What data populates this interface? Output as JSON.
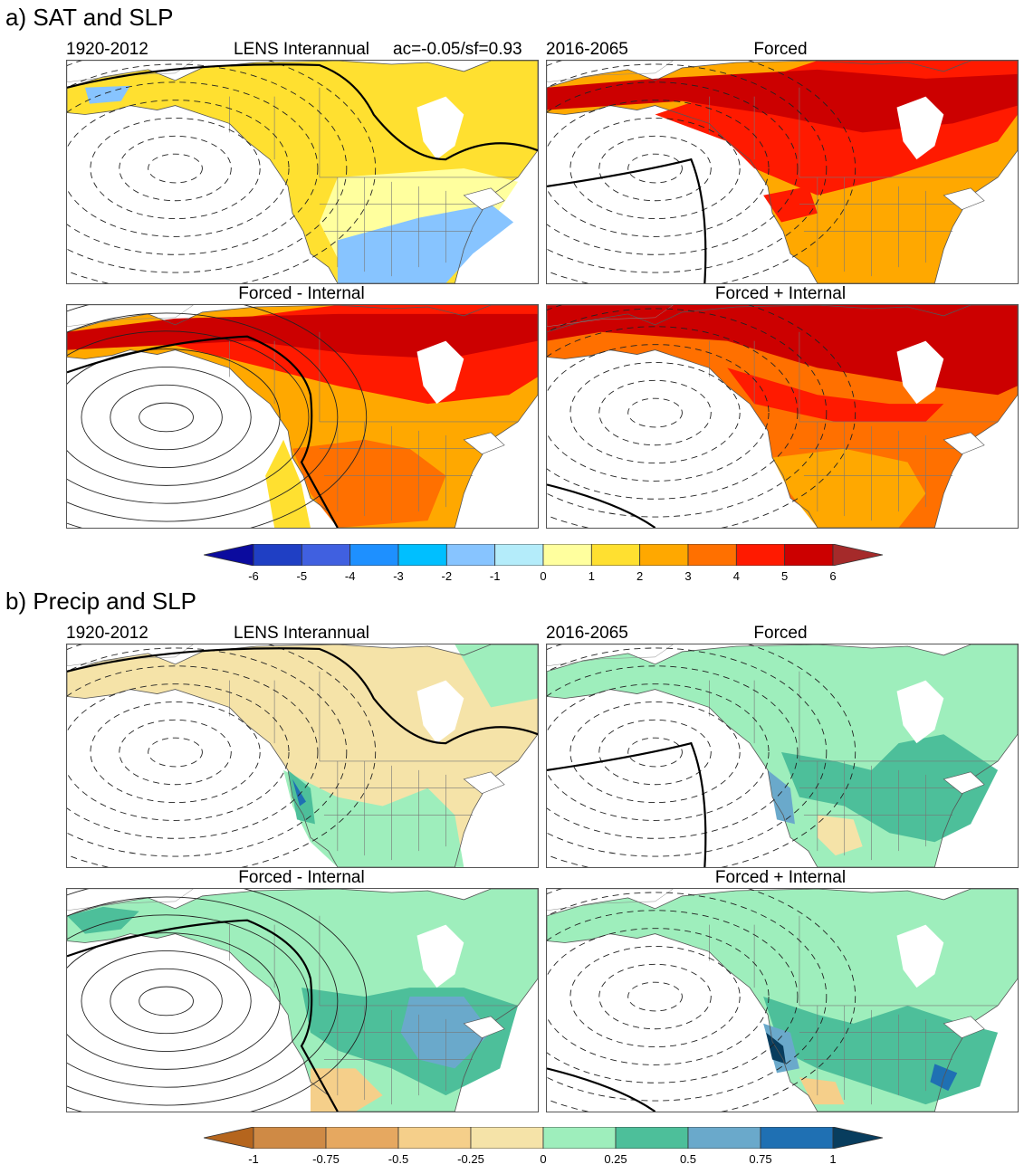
{
  "sections": [
    {
      "title": "a) SAT and SLP",
      "hdr_left": "1920-2012",
      "hdr_right": "2016-2065",
      "stat": "ac=-0.05/sf=0.93",
      "panels": [
        {
          "label": "LENS Interannual",
          "pattern": "sat_interannual"
        },
        {
          "label": "Forced",
          "pattern": "sat_forced"
        },
        {
          "label": "Forced - Internal",
          "pattern": "sat_minus"
        },
        {
          "label": "Forced + Internal",
          "pattern": "sat_plus"
        }
      ]
    },
    {
      "title": "b) Precip and SLP",
      "hdr_left": "1920-2012",
      "hdr_right": "2016-2065",
      "panels": [
        {
          "label": "LENS Interannual",
          "pattern": "pr_interannual"
        },
        {
          "label": "Forced",
          "pattern": "pr_forced"
        },
        {
          "label": "Forced - Internal",
          "pattern": "pr_minus"
        },
        {
          "label": "Forced + Internal",
          "pattern": "pr_plus"
        }
      ]
    }
  ],
  "chart_data": [
    {
      "type": "heatmap",
      "title": "a) SAT and SLP",
      "variable": "Surface air temperature anomaly with SLP contours",
      "panels": [
        {
          "label": "LENS Interannual",
          "period": "1920-2012",
          "summary": "weak warming ~0-2 over Canada/Alaska, slight cooling (-1 to 0) over SE United States and western Alaska; deep Aleutian low in SLP"
        },
        {
          "label": "Forced",
          "period": "2016-2065",
          "summary": "warming 3-6 everywhere over land, strongest (>6) over northern Canada, Alaska and Hudson Bay region"
        },
        {
          "label": "Forced - Internal",
          "period": "2016-2065",
          "summary": "warming 2-6, strongest over Alaska and northern Canada; strong low over North Pacific (solid contours)"
        },
        {
          "label": "Forced + Internal",
          "period": "2016-2065",
          "summary": "warming 3-6+, very strong (>6) over Alaska, western and northern Canada"
        }
      ],
      "colorbar": {
        "levels": [
          -6,
          -5,
          -4,
          -3,
          -2,
          -1,
          0,
          1,
          2,
          3,
          4,
          5,
          6
        ],
        "tick_labels": [
          "-6",
          "-5",
          "-4",
          "-3",
          "-2",
          "-1",
          "0",
          "1",
          "2",
          "3",
          "4",
          "5",
          "6"
        ],
        "colors": [
          "#0b0b9e",
          "#1f3fc4",
          "#4060e0",
          "#1e90ff",
          "#00bfff",
          "#87c4ff",
          "#b4ecfa",
          "#ffff9e",
          "#ffe030",
          "#ffa800",
          "#ff7000",
          "#ff1a00",
          "#cc0000",
          "#a52a2a"
        ]
      }
    },
    {
      "type": "heatmap",
      "title": "b) Precip and SLP",
      "variable": "Precipitation anomaly with SLP contours",
      "panels": [
        {
          "label": "LENS Interannual",
          "period": "1920-2012",
          "summary": "slight drying (-0.25 to 0) across Alaska and interior North America, wetting 0-0.25 over west coast and Gulf coast, 0.5-0.75 off California"
        },
        {
          "label": "Forced",
          "period": "2016-2065",
          "summary": "widespread wetting 0-0.5, with 0.25-0.5 over central and eastern US; slight drying over Texas/Mexico"
        },
        {
          "label": "Forced - Internal",
          "period": "2016-2065",
          "summary": "wetting 0-0.5 across continent, 0.5-0.75 over eastern US; drying over southwest US and Mexico"
        },
        {
          "label": "Forced + Internal",
          "period": "2016-2065",
          "summary": "wetting 0-0.25 broadly, up to 1 along California coast and southeast US; small drying over southwest"
        }
      ],
      "colorbar": {
        "levels": [
          -1,
          -0.75,
          -0.5,
          -0.25,
          0,
          0.25,
          0.5,
          0.75,
          1
        ],
        "tick_labels": [
          "-1",
          "-0.75",
          "-0.5",
          "-0.25",
          "0",
          "0.25",
          "0.5",
          "0.75",
          "1"
        ],
        "colors": [
          "#b5651d",
          "#cf8a45",
          "#e6a860",
          "#f5cf8a",
          "#f5e3a8",
          "#9eeebc",
          "#4dbf9a",
          "#6aa9cb",
          "#1f70b3",
          "#083d5e"
        ]
      }
    }
  ]
}
